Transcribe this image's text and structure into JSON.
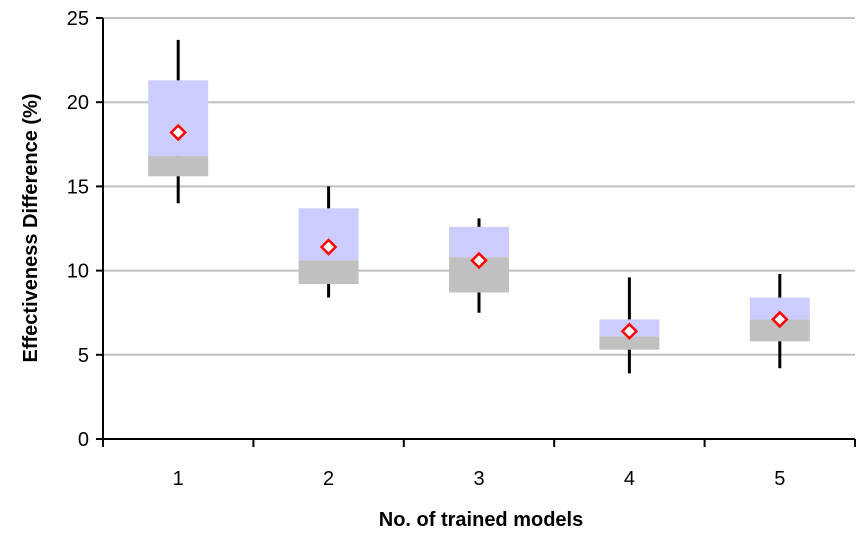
{
  "chart_data": {
    "type": "boxplot",
    "title": "",
    "xlabel": "No. of trained models",
    "ylabel": "Effectiveness Difference (%)",
    "categories": [
      "1",
      "2",
      "3",
      "4",
      "5"
    ],
    "ylim": [
      0,
      25
    ],
    "yticks": [
      0,
      5,
      10,
      15,
      20,
      25
    ],
    "grid": true,
    "legend": "none",
    "boxes": [
      {
        "category": "1",
        "whisker_low": 14.0,
        "q1": 15.6,
        "median": 16.8,
        "q3": 21.3,
        "whisker_high": 23.7,
        "mean": 18.2
      },
      {
        "category": "2",
        "whisker_low": 8.4,
        "q1": 9.2,
        "median": 10.6,
        "q3": 13.7,
        "whisker_high": 15.0,
        "mean": 11.4
      },
      {
        "category": "3",
        "whisker_low": 7.5,
        "q1": 8.7,
        "median": 10.8,
        "q3": 12.6,
        "whisker_high": 13.1,
        "mean": 10.6
      },
      {
        "category": "4",
        "whisker_low": 3.9,
        "q1": 5.3,
        "median": 6.1,
        "q3": 7.1,
        "whisker_high": 9.6,
        "mean": 6.4
      },
      {
        "category": "5",
        "whisker_low": 4.2,
        "q1": 5.8,
        "median": 7.1,
        "q3": 8.4,
        "whisker_high": 9.8,
        "mean": 7.1
      }
    ],
    "colors": {
      "upper_box": "#ccccff",
      "lower_box": "#c0c0c0",
      "grid": "#c0c0c0",
      "mean_marker_stroke": "#ff0000",
      "mean_marker_fill": "#ffffff"
    }
  }
}
